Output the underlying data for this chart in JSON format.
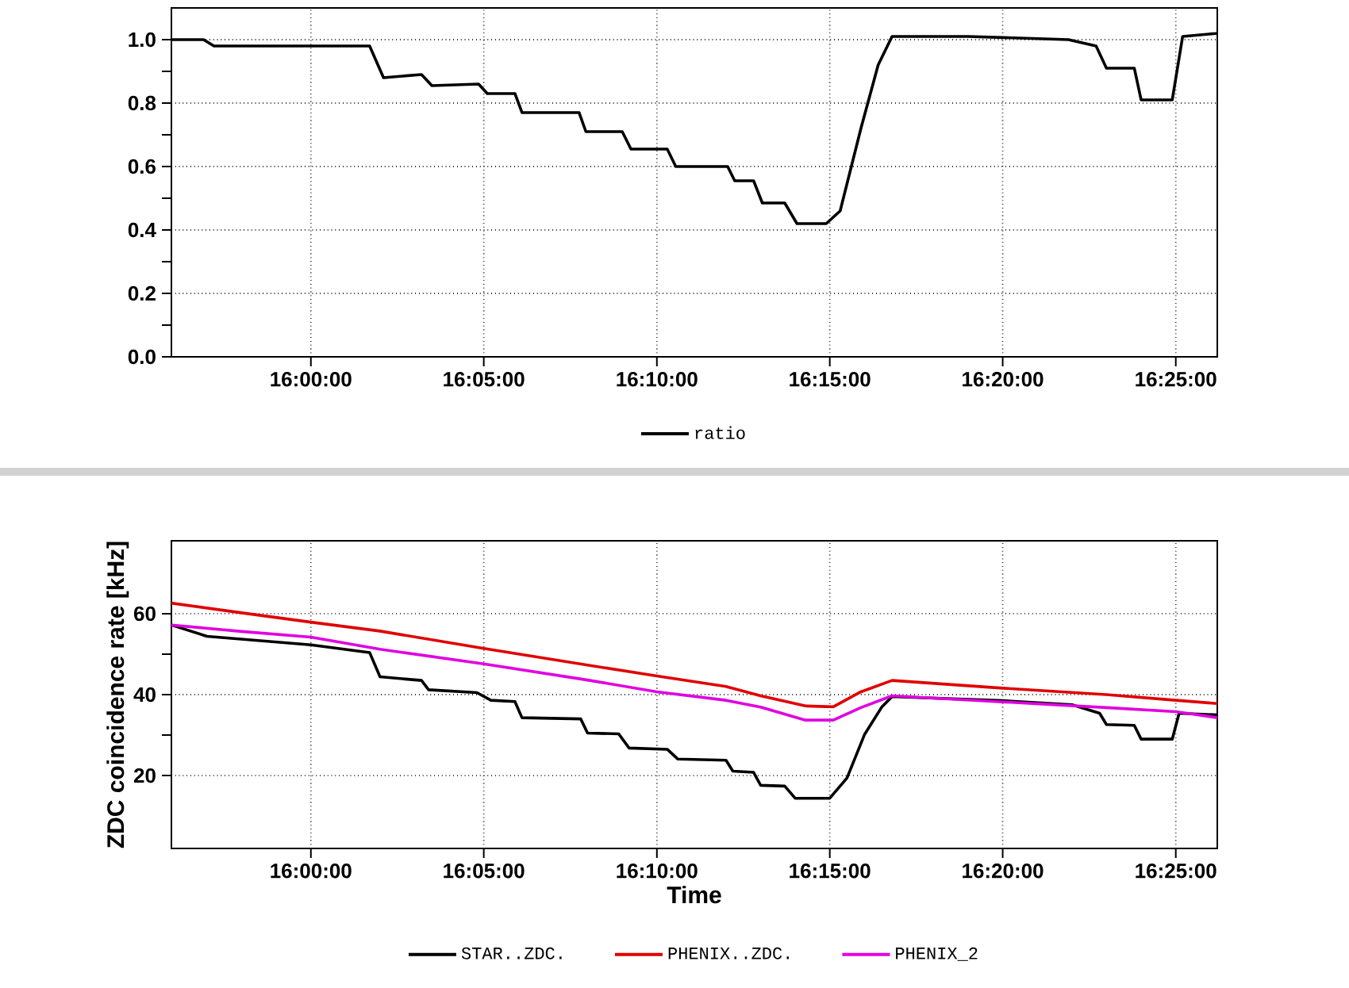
{
  "chart_data": [
    {
      "type": "line",
      "xlim": [
        15.9328,
        16.4367
      ],
      "ylim": [
        0,
        1.1
      ],
      "grid": true,
      "legend": "bottom",
      "line_style": "solid",
      "xticks": [
        {
          "value": 16.0,
          "label": "16:00:00"
        },
        {
          "value": 16.0833,
          "label": "16:05:00"
        },
        {
          "value": 16.1667,
          "label": "16:10:00"
        },
        {
          "value": 16.25,
          "label": "16:15:00"
        },
        {
          "value": 16.3333,
          "label": "16:20:00"
        },
        {
          "value": 16.4167,
          "label": "16:25:00"
        }
      ],
      "yticks": [
        {
          "value": 0,
          "label": "0.0"
        },
        {
          "value": 0.2,
          "label": "0.2"
        },
        {
          "value": 0.4,
          "label": "0.4"
        },
        {
          "value": 0.6,
          "label": "0.6"
        },
        {
          "value": 0.8,
          "label": "0.8"
        },
        {
          "value": 1.0,
          "label": "1.0"
        }
      ],
      "series": [
        {
          "name": "ratio",
          "color": "#000000",
          "x": [
            15.9328,
            15.9483,
            15.9533,
            16.0283,
            16.035,
            16.0533,
            16.0583,
            16.0808,
            16.085,
            16.0983,
            16.1017,
            16.1292,
            16.1325,
            16.15,
            16.1542,
            16.1717,
            16.1758,
            16.2008,
            16.2042,
            16.2133,
            16.2175,
            16.2283,
            16.2342,
            16.2483,
            16.255,
            16.265,
            16.2733,
            16.28,
            16.3167,
            16.365,
            16.3783,
            16.3833,
            16.3967,
            16.4,
            16.415,
            16.42,
            16.4367
          ],
          "values": [
            1.0,
            1.0,
            0.98,
            0.98,
            0.88,
            0.89,
            0.855,
            0.86,
            0.83,
            0.83,
            0.77,
            0.77,
            0.71,
            0.71,
            0.655,
            0.655,
            0.6,
            0.6,
            0.555,
            0.555,
            0.485,
            0.485,
            0.42,
            0.42,
            0.46,
            0.72,
            0.92,
            1.01,
            1.01,
            1.0,
            0.98,
            0.91,
            0.91,
            0.81,
            0.81,
            1.01,
            1.02
          ]
        }
      ]
    },
    {
      "type": "line",
      "xlabel": "Time",
      "ylabel": "ZDC coincidence rate [kHz]",
      "xlim": [
        15.9328,
        16.4367
      ],
      "ylim": [
        2,
        78
      ],
      "grid": true,
      "legend": "bottom",
      "line_style": "solid",
      "xticks": [
        {
          "value": 16.0,
          "label": "16:00:00"
        },
        {
          "value": 16.0833,
          "label": "16:05:00"
        },
        {
          "value": 16.1667,
          "label": "16:10:00"
        },
        {
          "value": 16.25,
          "label": "16:15:00"
        },
        {
          "value": 16.3333,
          "label": "16:20:00"
        },
        {
          "value": 16.4167,
          "label": "16:25:00"
        }
      ],
      "yticks": [
        20,
        40,
        60
      ],
      "series": [
        {
          "name": "STAR..ZDC.",
          "color": "#000000",
          "x": [
            15.9328,
            15.95,
            16.0,
            16.0283,
            16.0333,
            16.0533,
            16.0567,
            16.08,
            16.0867,
            16.0983,
            16.1017,
            16.13,
            16.1333,
            16.1483,
            16.1533,
            16.1717,
            16.1767,
            16.2,
            16.2033,
            16.2133,
            16.2167,
            16.2283,
            16.2333,
            16.25,
            16.2583,
            16.2667,
            16.275,
            16.28,
            16.3333,
            16.3667,
            16.38,
            16.3833,
            16.3967,
            16.4,
            16.415,
            16.4183,
            16.4367
          ],
          "values": [
            57.2,
            54.4,
            52.3,
            50.4,
            44.4,
            43.5,
            41.2,
            40.5,
            38.6,
            38.3,
            34.3,
            34.0,
            30.5,
            30.3,
            26.8,
            26.5,
            24.1,
            23.8,
            21.1,
            20.8,
            17.6,
            17.4,
            14.4,
            14.4,
            19.4,
            30.1,
            36.9,
            39.5,
            38.5,
            37.5,
            35.4,
            32.6,
            32.4,
            29.0,
            29.0,
            35.4,
            35.0
          ]
        },
        {
          "name": "PHENIX..ZDC.",
          "color": "#e00000",
          "x": [
            15.9328,
            15.9667,
            16.0,
            16.0333,
            16.0833,
            16.1333,
            16.1667,
            16.2,
            16.2167,
            16.2383,
            16.2517,
            16.265,
            16.28,
            16.3333,
            16.3833,
            16.4167,
            16.4367
          ],
          "values": [
            62.6,
            60.2,
            57.9,
            55.7,
            51.4,
            47.3,
            44.6,
            42.0,
            39.7,
            37.2,
            37.0,
            40.7,
            43.5,
            41.6,
            40.0,
            38.6,
            37.8
          ]
        },
        {
          "name": "PHENIX_2",
          "color": "#e000e0",
          "x": [
            15.9328,
            15.9667,
            16.0,
            16.0333,
            16.0833,
            16.1333,
            16.1667,
            16.2,
            16.2167,
            16.2383,
            16.2517,
            16.265,
            16.28,
            16.3333,
            16.3833,
            16.4167,
            16.4367
          ],
          "values": [
            57.2,
            55.6,
            54.2,
            51.2,
            47.6,
            43.6,
            40.7,
            38.6,
            36.9,
            33.7,
            33.7,
            36.8,
            39.7,
            38.2,
            36.8,
            35.8,
            34.3
          ]
        }
      ]
    }
  ]
}
